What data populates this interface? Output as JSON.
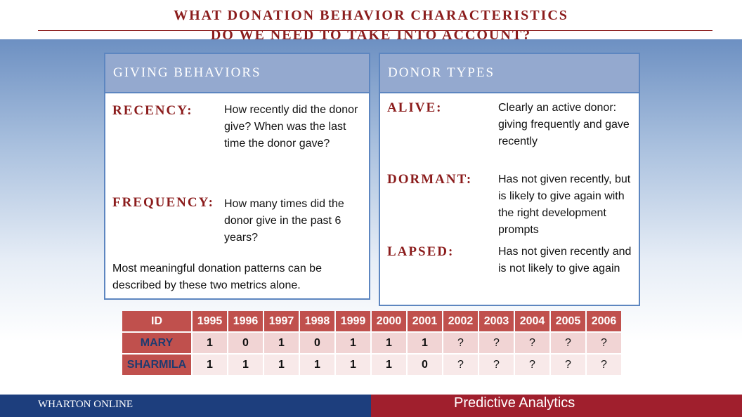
{
  "slide": {
    "title_line1": "WHAT DONATION BEHAVIOR CHARACTERISTICS",
    "title_line2": "DO WE NEED TO TAKE INTO ACCOUNT?"
  },
  "colors": {
    "title_red": "#8b1c1c",
    "panel_head": "#94a9cf",
    "panel_border": "#5d86c0",
    "table_head": "#c0504d",
    "footer_blue": "#1d3e7d",
    "footer_red": "#a01f2d"
  },
  "giving": {
    "heading": "GIVING BEHAVIORS",
    "items": [
      {
        "term": "RECENCY:",
        "desc": "How recently did the donor give? When was the last time the donor gave?"
      },
      {
        "term": "FREQUENCY:",
        "desc": "How many times did the donor give in the past 6 years?"
      }
    ],
    "note": "Most meaningful donation patterns can be described by these two metrics alone."
  },
  "donor": {
    "heading": "DONOR TYPES",
    "items": [
      {
        "term": "ALIVE:",
        "desc": "Clearly an active donor: giving frequently and gave recently"
      },
      {
        "term": "DORMANT:",
        "desc": "Has not given recently, but is likely to give again with the right development prompts"
      },
      {
        "term": "LAPSED:",
        "desc": "Has not given recently and is not likely to give again"
      }
    ]
  },
  "table": {
    "headers": [
      "ID",
      "1995",
      "1996",
      "1997",
      "1998",
      "1999",
      "2000",
      "2001",
      "2002",
      "2003",
      "2004",
      "2005",
      "2006"
    ],
    "rows": [
      [
        "MARY",
        "1",
        "0",
        "1",
        "0",
        "1",
        "1",
        "1",
        "?",
        "?",
        "?",
        "?",
        "?"
      ],
      [
        "SHARMILA",
        "1",
        "1",
        "1",
        "1",
        "1",
        "1",
        "0",
        "?",
        "?",
        "?",
        "?",
        "?"
      ]
    ]
  },
  "footer": {
    "left": "WHARTON ONLINE",
    "right": "Predictive Analytics"
  }
}
